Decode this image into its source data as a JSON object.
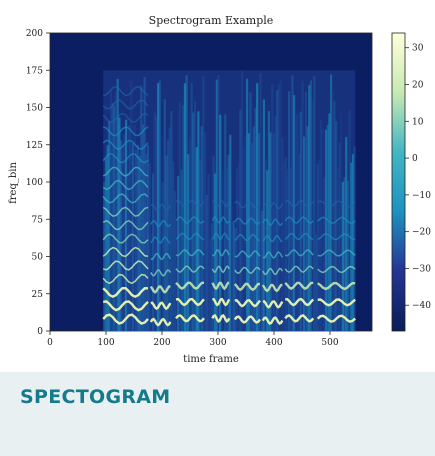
{
  "card": {
    "caption": "SPECTOGRAM"
  },
  "colors": {
    "background_outer": "#2b3a44",
    "caption_bg": "#e8f0f2",
    "caption_text": "#157a8c",
    "plot_bg": "#0b1e62"
  },
  "chart_data": {
    "type": "heatmap",
    "title": "Spectrogram Example",
    "xlabel": "time frame",
    "ylabel": "freq_bin",
    "xlim": [
      0,
      575
    ],
    "ylim": [
      0,
      200
    ],
    "xticks": [
      "0",
      "100",
      "200",
      "300",
      "400",
      "500"
    ],
    "yticks": [
      "0",
      "25",
      "50",
      "75",
      "100",
      "125",
      "150",
      "175",
      "200"
    ],
    "colormap": "YlGnBu_r",
    "colorbar": {
      "range": [
        -47,
        34
      ],
      "ticks": [
        "30",
        "20",
        "10",
        "0",
        "−10",
        "−20",
        "−30",
        "−40"
      ]
    },
    "active_time_range": [
      95,
      545
    ],
    "active_freq_max": 175,
    "note_segments_x": [
      [
        95,
        175
      ],
      [
        180,
        215
      ],
      [
        225,
        275
      ],
      [
        290,
        320
      ],
      [
        330,
        375
      ],
      [
        380,
        415
      ],
      [
        420,
        470
      ],
      [
        478,
        545
      ]
    ]
  }
}
